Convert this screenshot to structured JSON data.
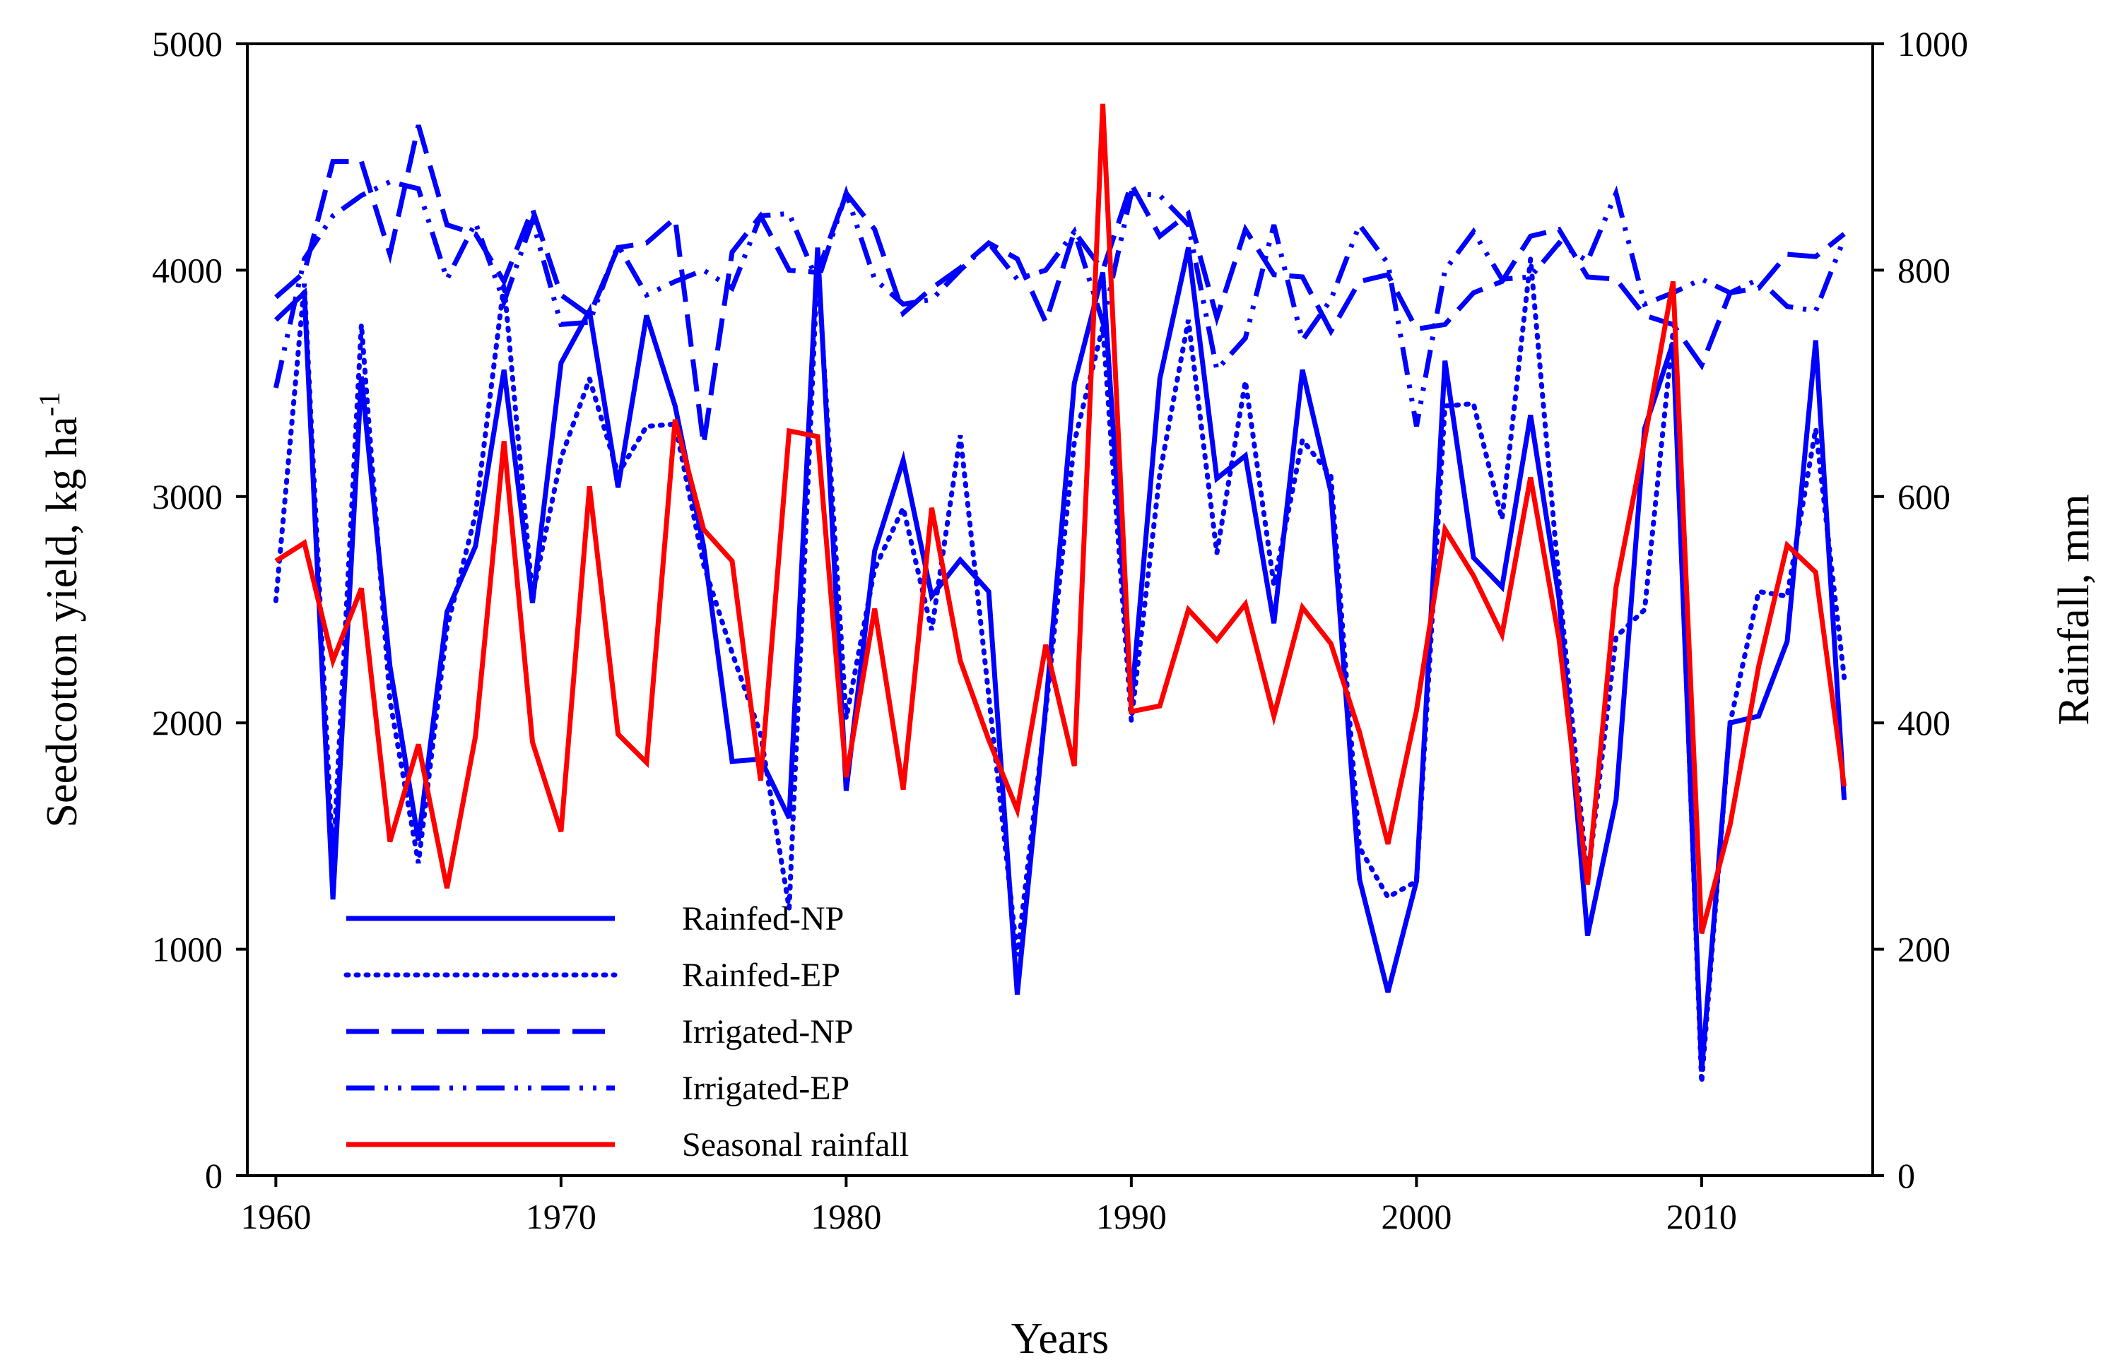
{
  "chart_data": {
    "type": "line",
    "xlabel": "Years",
    "ylabel_left": "Seedcotton yield, kg ha",
    "ylabel_left_superscript": "-1",
    "ylabel_right": "Rainfall, mm",
    "xlim": [
      1959,
      2016
    ],
    "ylim_left": [
      0,
      5000
    ],
    "ylim_right": [
      0,
      1000
    ],
    "x_ticks": [
      1960,
      1970,
      1980,
      1990,
      2000,
      2010
    ],
    "y_left_ticks": [
      0,
      1000,
      2000,
      3000,
      4000,
      5000
    ],
    "y_right_ticks": [
      0,
      200,
      400,
      600,
      800,
      1000
    ],
    "grid": false,
    "legend_position": "bottom-left",
    "x": [
      1960,
      1961,
      1962,
      1963,
      1964,
      1965,
      1966,
      1967,
      1968,
      1969,
      1970,
      1971,
      1972,
      1973,
      1974,
      1975,
      1976,
      1977,
      1978,
      1979,
      1980,
      1981,
      1982,
      1983,
      1984,
      1985,
      1986,
      1987,
      1988,
      1989,
      1990,
      1991,
      1992,
      1993,
      1994,
      1995,
      1996,
      1997,
      1998,
      1999,
      2000,
      2001,
      2002,
      2003,
      2004,
      2005,
      2006,
      2007,
      2008,
      2009,
      2010,
      2011,
      2012,
      2013,
      2014,
      2015
    ],
    "series": [
      {
        "name": "Rainfed-NP",
        "axis": "left",
        "color": "#0000ff",
        "style": "solid",
        "values": [
          3780,
          3900,
          1220,
          3530,
          2250,
          1480,
          2490,
          2780,
          3560,
          2530,
          3590,
          3820,
          3040,
          3800,
          3400,
          2780,
          1830,
          1840,
          1580,
          4100,
          1700,
          2760,
          3160,
          2560,
          2720,
          2580,
          800,
          2070,
          3500,
          3990,
          2090,
          3520,
          4100,
          3080,
          3180,
          2440,
          3560,
          3020,
          1310,
          810,
          1300,
          3600,
          2730,
          2600,
          3360,
          2550,
          1060,
          1660,
          3300,
          3680,
          460,
          2000,
          2030,
          2360,
          3690,
          1660
        ]
      },
      {
        "name": "Rainfed-EP",
        "axis": "left",
        "color": "#0000ff",
        "style": "dotted",
        "values": [
          2540,
          3940,
          1380,
          3760,
          2100,
          1380,
          2420,
          2920,
          3940,
          2560,
          3170,
          3520,
          3100,
          3310,
          3320,
          2700,
          2310,
          1950,
          1180,
          4030,
          2020,
          2680,
          2950,
          2410,
          3270,
          2120,
          970,
          2050,
          3240,
          3750,
          2010,
          3100,
          3780,
          2750,
          3510,
          2610,
          3250,
          3090,
          1450,
          1230,
          1300,
          3400,
          3410,
          2900,
          4050,
          2620,
          1300,
          2380,
          2500,
          3730,
          410,
          2000,
          2580,
          2560,
          3300,
          2200
        ]
      },
      {
        "name": "Irrigated-NP",
        "axis": "left",
        "color": "#0000ff",
        "style": "dashed",
        "values": [
          3880,
          3990,
          4480,
          4480,
          4070,
          4640,
          4200,
          4160,
          3950,
          4270,
          3890,
          3800,
          4100,
          4120,
          4230,
          3230,
          4080,
          4240,
          4000,
          3990,
          4340,
          4180,
          3810,
          3920,
          4010,
          4120,
          4050,
          3770,
          4170,
          4000,
          4380,
          4150,
          4250,
          3790,
          4180,
          3980,
          3970,
          3730,
          3950,
          3980,
          3740,
          3760,
          3900,
          3950,
          4150,
          4180,
          3970,
          3960,
          3800,
          3760,
          3580,
          3900,
          3920,
          4070,
          4060,
          4160
        ]
      },
      {
        "name": "Irrigated-EP",
        "axis": "left",
        "color": "#0000ff",
        "style": "dashdotdot",
        "values": [
          3480,
          4050,
          4240,
          4330,
          4390,
          4360,
          3960,
          4210,
          3860,
          4220,
          3760,
          3770,
          4110,
          3890,
          3950,
          4000,
          3920,
          4240,
          4250,
          3950,
          4340,
          3960,
          3850,
          3870,
          4000,
          4120,
          3960,
          4000,
          4170,
          3770,
          4340,
          4330,
          4200,
          3560,
          3700,
          4200,
          3690,
          3870,
          4200,
          4030,
          3310,
          4000,
          4170,
          3960,
          3970,
          4120,
          4040,
          4340,
          3850,
          3900,
          3960,
          3900,
          3960,
          3840,
          3820,
          4140
        ]
      },
      {
        "name": "Seasonal rainfall",
        "axis": "right",
        "color": "#ff0000",
        "style": "solid",
        "values": [
          543,
          559,
          455,
          519,
          295,
          381,
          254,
          388,
          649,
          383,
          304,
          609,
          390,
          365,
          668,
          571,
          543,
          349,
          658,
          653,
          352,
          501,
          341,
          590,
          455,
          385,
          323,
          469,
          362,
          947,
          410,
          415,
          500,
          473,
          505,
          406,
          502,
          470,
          392,
          293,
          411,
          571,
          530,
          478,
          617,
          474,
          257,
          520,
          650,
          790,
          214,
          310,
          450,
          557,
          533,
          344
        ]
      }
    ]
  }
}
